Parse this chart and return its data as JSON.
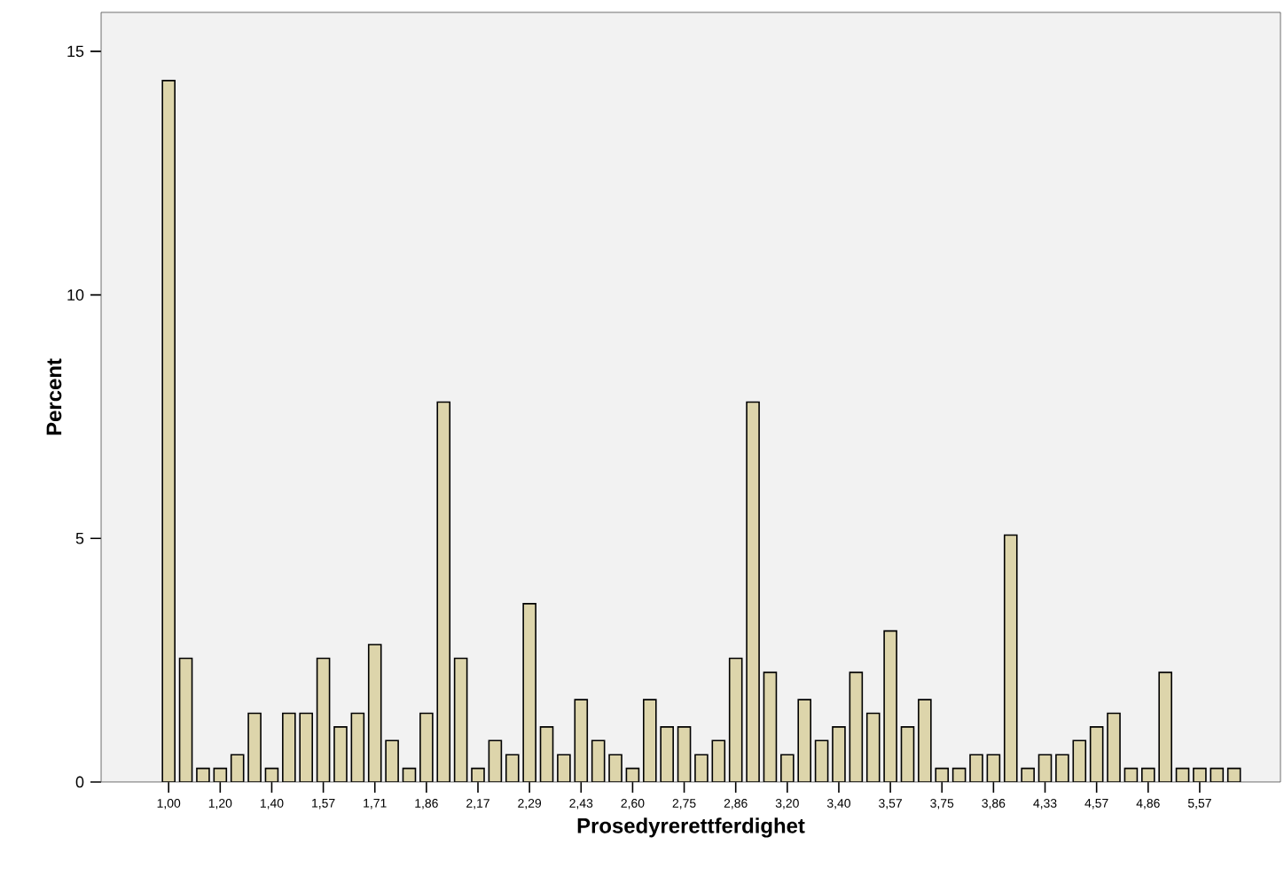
{
  "chart_data": {
    "type": "bar",
    "xlabel": "Prosedyrerettferdighet",
    "ylabel": "Percent",
    "categories": [
      "1,00",
      null,
      null,
      "1,20",
      null,
      null,
      "1,40",
      null,
      null,
      "1,57",
      null,
      null,
      "1,71",
      null,
      null,
      "1,86",
      null,
      null,
      "2,17",
      null,
      null,
      "2,29",
      null,
      null,
      "2,43",
      null,
      null,
      "2,60",
      null,
      null,
      "2,75",
      null,
      null,
      "2,86",
      null,
      null,
      "3,20",
      null,
      null,
      "3,40",
      null,
      null,
      "3,57",
      null,
      null,
      "3,75",
      null,
      null,
      "3,86",
      null,
      null,
      "4,33",
      null,
      null,
      "4,57",
      null,
      null,
      "4,86",
      null,
      null,
      "5,57",
      null,
      null
    ],
    "values": [
      14.4,
      2.54,
      0.28,
      0.28,
      0.56,
      1.41,
      0.28,
      1.41,
      1.41,
      2.54,
      1.13,
      1.41,
      2.82,
      0.85,
      0.28,
      1.41,
      7.8,
      2.54,
      0.28,
      0.85,
      0.56,
      3.66,
      1.13,
      0.56,
      1.69,
      0.85,
      0.56,
      0.28,
      1.69,
      1.13,
      1.13,
      0.56,
      0.85,
      2.54,
      7.8,
      2.25,
      0.56,
      1.69,
      0.85,
      1.13,
      2.25,
      1.41,
      3.1,
      1.13,
      1.69,
      0.28,
      0.28,
      0.56,
      0.56,
      5.07,
      0.28,
      0.56,
      0.56,
      0.85,
      1.13,
      1.41,
      0.28,
      0.28,
      2.25,
      0.28,
      0.28,
      0.28,
      0.28
    ],
    "color": "#ddd5ab",
    "ylim": [
      0,
      15.8
    ],
    "yticks": [
      0,
      5,
      10,
      15
    ]
  }
}
